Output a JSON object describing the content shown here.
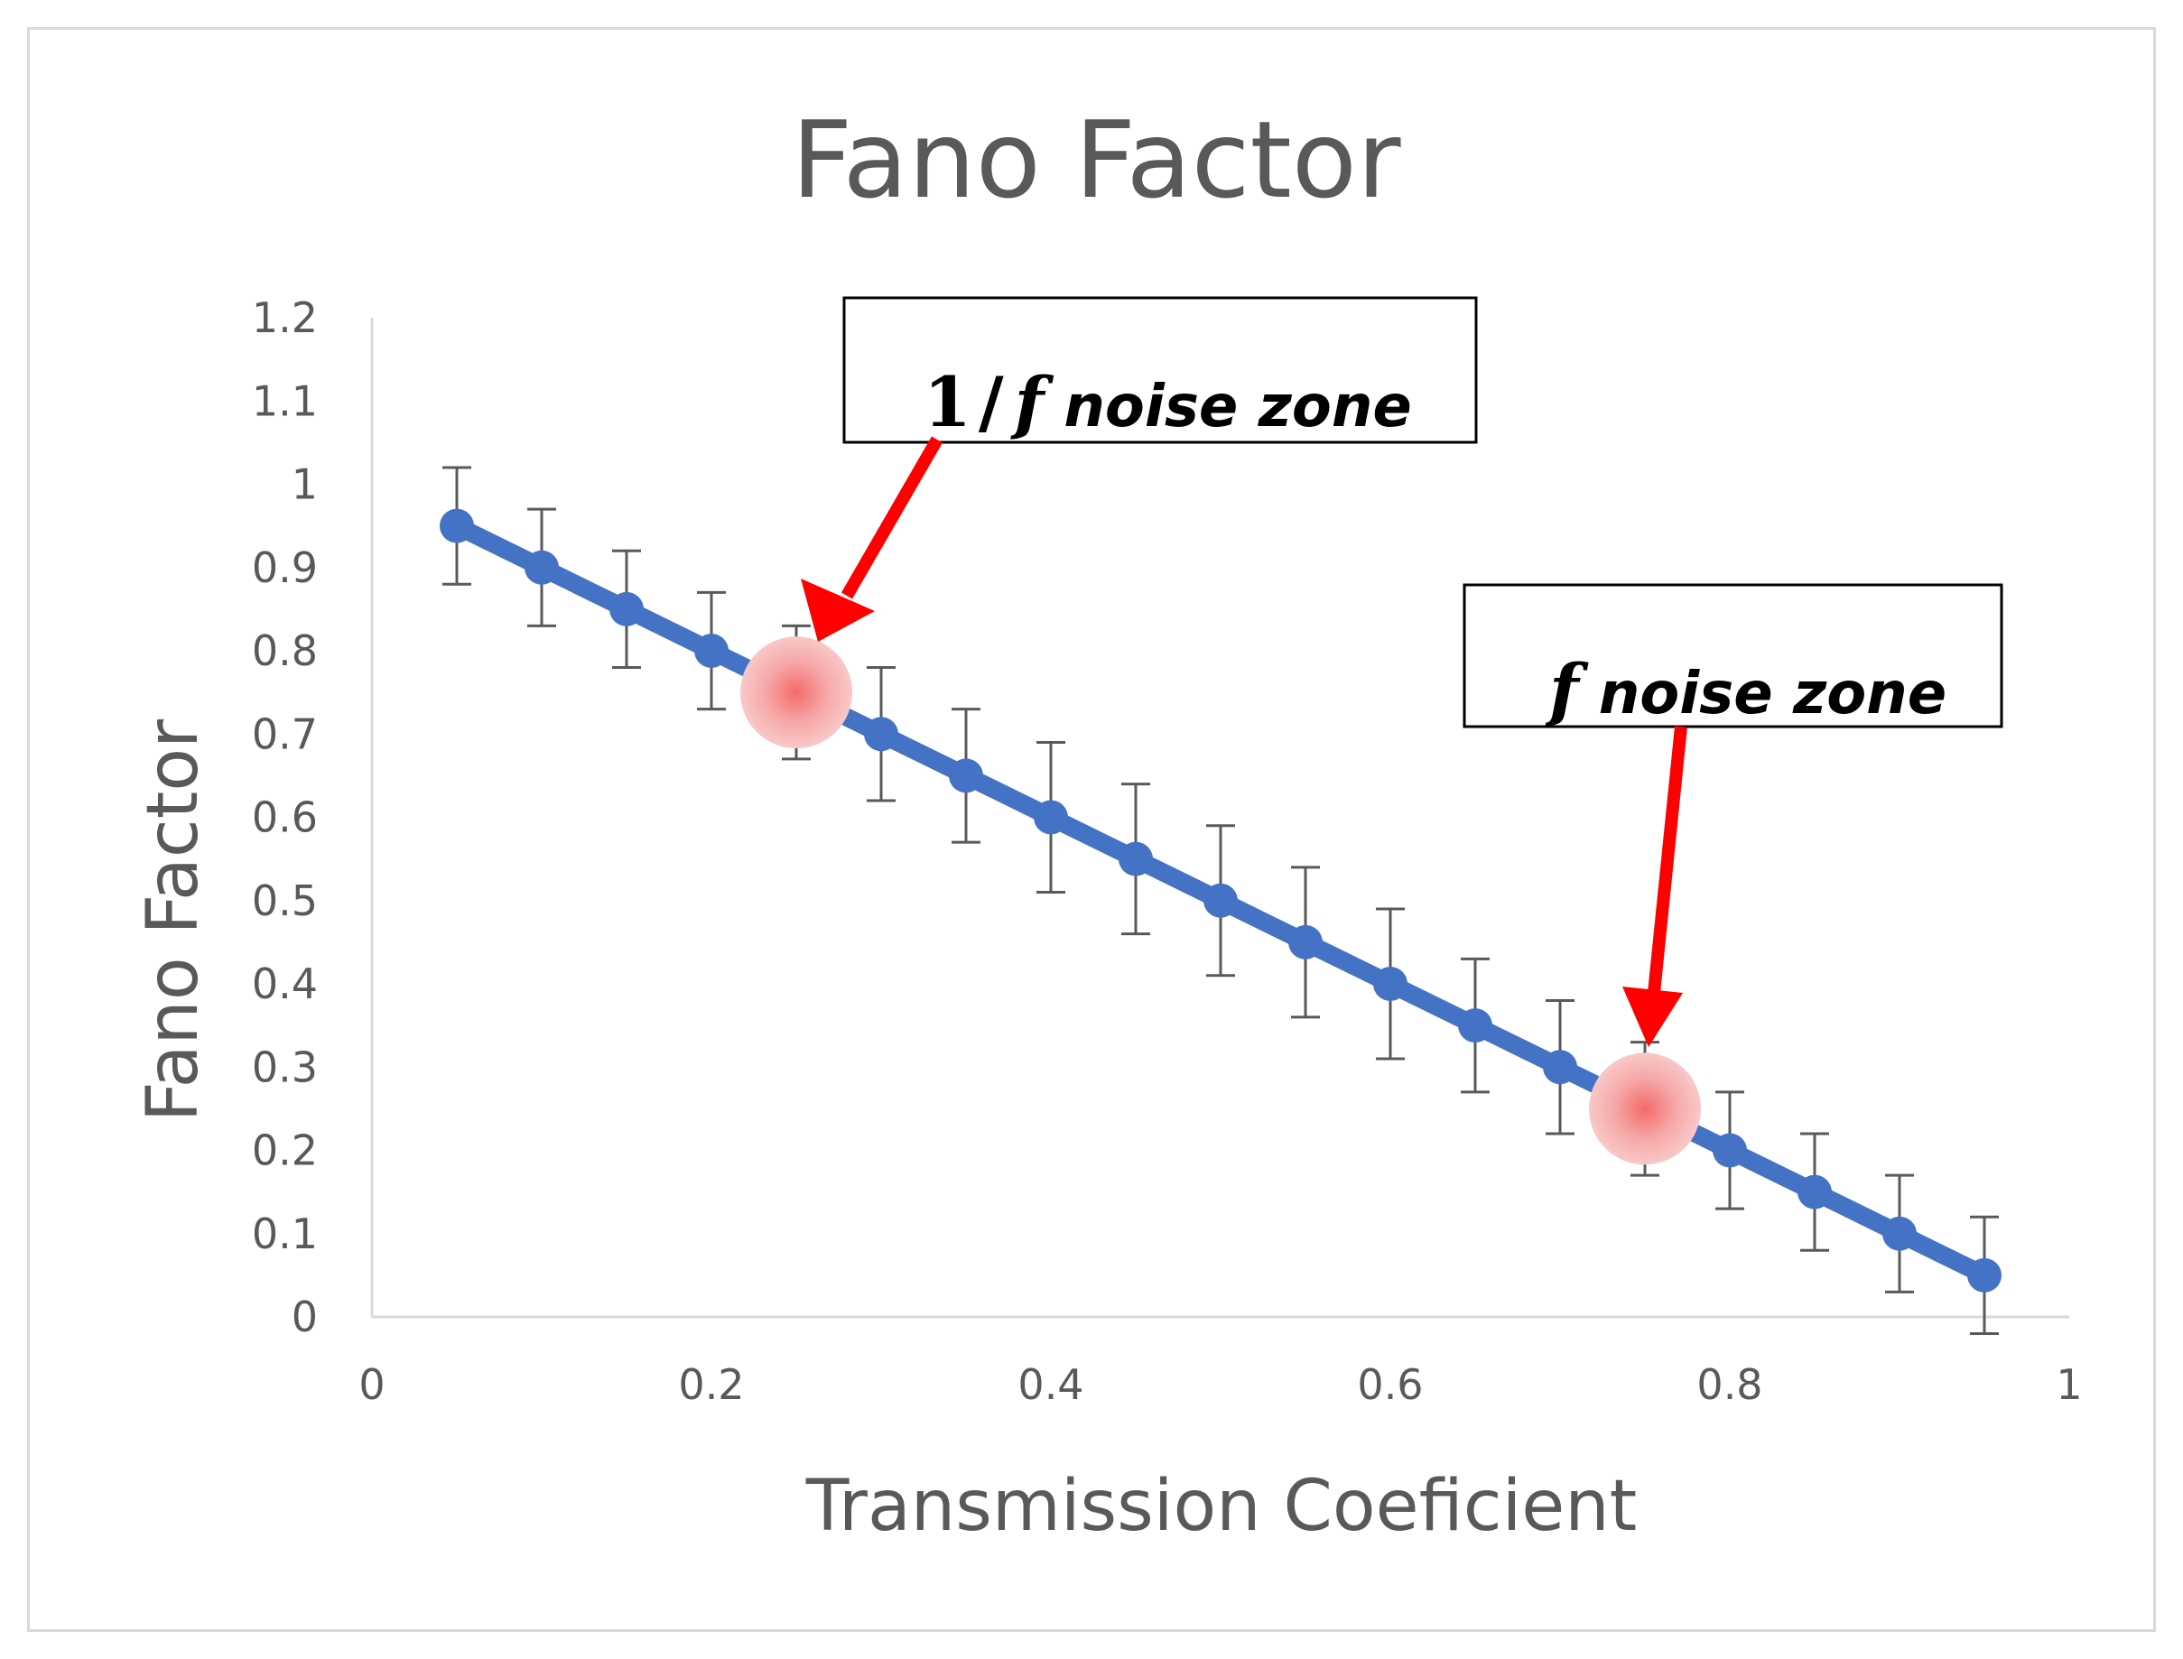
{
  "chart_data": {
    "type": "line",
    "title": "Fano Factor",
    "xlabel": "Transmission Coeficient",
    "ylabel": "Fano Factor",
    "xlim": [
      0,
      1
    ],
    "ylim": [
      0,
      1.2
    ],
    "x_ticks": [
      "0",
      "0.2",
      "0.4",
      "0.6",
      "0.8",
      "1"
    ],
    "y_ticks": [
      "0",
      "0.1",
      "0.2",
      "0.3",
      "0.4",
      "0.5",
      "0.6",
      "0.7",
      "0.8",
      "0.9",
      "1",
      "1.1",
      "1.2"
    ],
    "grid": false,
    "series": [
      {
        "name": "Fano Factor",
        "color": "#4472c4",
        "x": [
          0.05,
          0.1,
          0.15,
          0.2,
          0.25,
          0.3,
          0.35,
          0.4,
          0.45,
          0.5,
          0.55,
          0.6,
          0.65,
          0.7,
          0.75,
          0.8,
          0.85,
          0.9,
          0.95
        ],
        "y": [
          0.95,
          0.9,
          0.85,
          0.8,
          0.75,
          0.7,
          0.65,
          0.6,
          0.55,
          0.5,
          0.45,
          0.4,
          0.35,
          0.3,
          0.25,
          0.2,
          0.15,
          0.1,
          0.05
        ],
        "error": [
          0.07,
          0.07,
          0.07,
          0.07,
          0.08,
          0.08,
          0.08,
          0.09,
          0.09,
          0.09,
          0.09,
          0.09,
          0.08,
          0.08,
          0.08,
          0.07,
          0.07,
          0.07,
          0.07
        ]
      }
    ],
    "highlights": [
      {
        "x": 0.25,
        "y": 0.75,
        "color": "#f4a6a6"
      },
      {
        "x": 0.75,
        "y": 0.25,
        "color": "#f4a6a6"
      }
    ],
    "annotations": [
      {
        "num": "1",
        "slash": "/",
        "f": "f",
        "label": "noise zone",
        "target_x": 0.25,
        "target_y": 0.75,
        "arrow_color": "#ff0000"
      },
      {
        "f": "f",
        "label": "noise zone",
        "target_x": 0.75,
        "target_y": 0.25,
        "arrow_color": "#ff0000"
      }
    ]
  }
}
